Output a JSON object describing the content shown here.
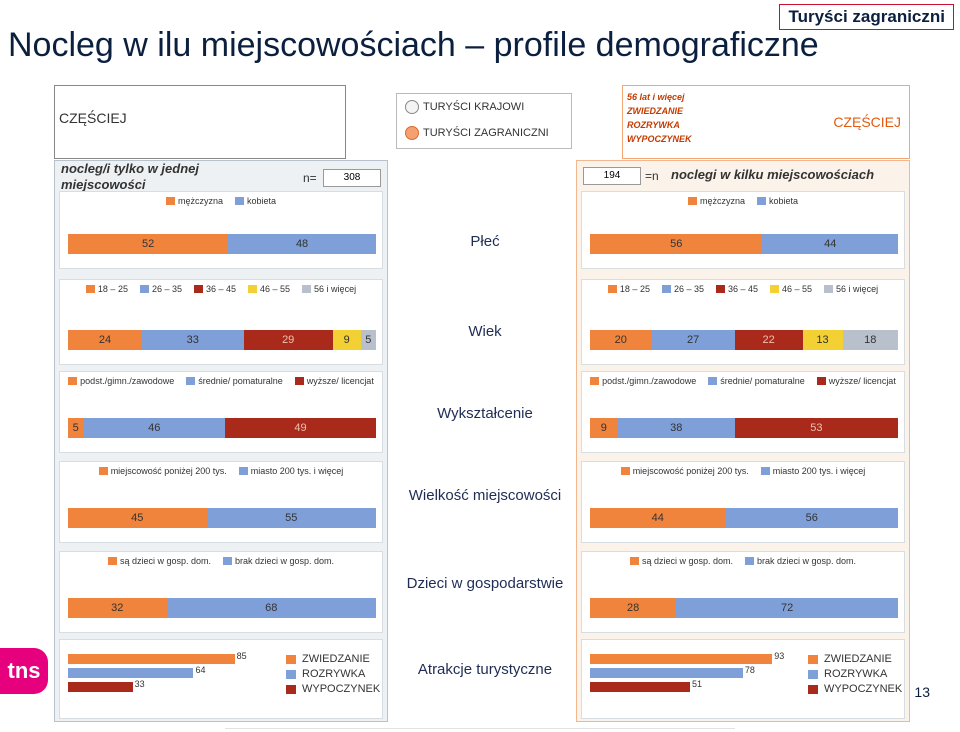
{
  "title": "Nocleg w ilu miejscowościach – profile demograficzne",
  "badge": "Turyści zagraniczni",
  "left_czesciej": "CZĘŚCIEJ",
  "radio": {
    "option1": "TURYŚCI KRAJOWI",
    "option2": "TURYŚCI ZAGRANICZNI",
    "selected": 2
  },
  "target_box": {
    "lines": [
      "56 lat i więcej",
      "ZWIEDZANIE",
      "ROZRYWKA",
      "WYPOCZYNEK"
    ],
    "czesciej": "CZĘŚCIEJ"
  },
  "left_header": {
    "title": "nocleg/i tylko w jednej miejscowości",
    "n_label": "n=",
    "n_value": "308"
  },
  "right_header": {
    "title": "noclegi w kilku miejscowościach",
    "n_label": "=n",
    "n_value": "194"
  },
  "colors": {
    "orange": "#f0843c",
    "blue": "#7f9fd8",
    "darkred": "#a92a1a",
    "yellow": "#f3d033",
    "gray": "#b8c0cc"
  },
  "page_number": "13",
  "logo": "tns",
  "chart_data": [
    {
      "type": "bar",
      "label": "Płeć",
      "legend": [
        "mężczyzna",
        "kobieta"
      ],
      "colors": [
        "#f0843c",
        "#7f9fd8"
      ],
      "left": [
        52,
        48
      ],
      "right": [
        56,
        44
      ]
    },
    {
      "type": "bar",
      "label": "Wiek",
      "legend": [
        "18 – 25",
        "26 – 35",
        "36 – 45",
        "46 – 55",
        "56 i więcej"
      ],
      "colors": [
        "#f0843c",
        "#7f9fd8",
        "#a92a1a",
        "#f3d033",
        "#b8c0cc"
      ],
      "left": [
        24,
        33,
        29,
        9,
        5
      ],
      "right": [
        20,
        27,
        22,
        13,
        18
      ]
    },
    {
      "type": "bar",
      "label": "Wykształcenie",
      "legend": [
        "podst./gimn./zawodowe",
        "średnie/ pomaturalne",
        "wyższe/ licencjat"
      ],
      "colors": [
        "#f0843c",
        "#7f9fd8",
        "#a92a1a"
      ],
      "left": [
        5,
        46,
        49
      ],
      "right": [
        9,
        38,
        53
      ]
    },
    {
      "type": "bar",
      "label": "Wielkość miejscowości",
      "legend": [
        "miejscowość poniżej 200 tys.",
        "miasto 200 tys. i więcej"
      ],
      "colors": [
        "#f0843c",
        "#7f9fd8"
      ],
      "left": [
        45,
        55
      ],
      "right": [
        44,
        56
      ]
    },
    {
      "type": "bar",
      "label": "Dzieci w gospodarstwie",
      "legend": [
        "są dzieci w gosp. dom.",
        "brak dzieci w gosp. dom."
      ],
      "colors": [
        "#f0843c",
        "#7f9fd8"
      ],
      "left": [
        32,
        68
      ],
      "right": [
        28,
        72
      ]
    },
    {
      "type": "bar",
      "label": "Atrakcje turystyczne",
      "legend": [
        "ZWIEDZANIE",
        "ROZRYWKA",
        "WYPOCZYNEK"
      ],
      "colors": [
        "#f0843c",
        "#7f9fd8",
        "#a92a1a"
      ],
      "left": [
        85,
        64,
        33
      ],
      "right": [
        93,
        78,
        51
      ]
    }
  ]
}
